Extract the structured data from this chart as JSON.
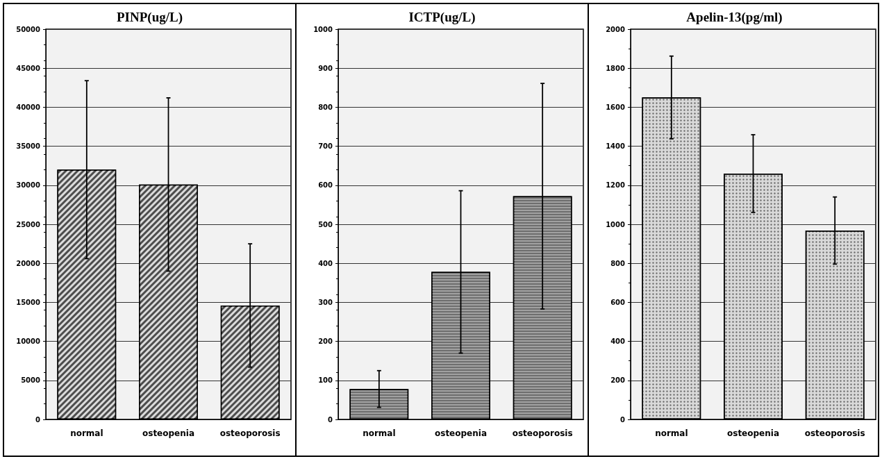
{
  "chart_data": [
    {
      "type": "bar",
      "title": "PINP(ug/L)",
      "categories": [
        "normal",
        "osteopenia",
        "osteoporosis"
      ],
      "values": [
        32000,
        30100,
        14600
      ],
      "errors": [
        11400,
        11100,
        7900
      ],
      "color": "#4d4d4d",
      "ylim": [
        0,
        50000
      ],
      "yticks": [
        0,
        5000,
        10000,
        15000,
        20000,
        25000,
        30000,
        35000,
        40000,
        45000,
        50000
      ],
      "grid": "y"
    },
    {
      "type": "bar",
      "title": "ICTP(ug/L)",
      "categories": [
        "normal",
        "osteopenia",
        "osteoporosis"
      ],
      "values": [
        78,
        378,
        572
      ],
      "errors": [
        47,
        208,
        289
      ],
      "color": "#6e6e6e",
      "ylim": [
        0,
        1000
      ],
      "yticks": [
        0,
        100,
        200,
        300,
        400,
        500,
        600,
        700,
        800,
        900,
        1000
      ],
      "grid": "y"
    },
    {
      "type": "bar",
      "title": "Apelin-13(pg/ml)",
      "categories": [
        "normal",
        "osteopenia",
        "osteoporosis"
      ],
      "values": [
        1650,
        1260,
        968
      ],
      "errors": [
        212,
        199,
        172
      ],
      "color": "#d9d9d9",
      "ylim": [
        0,
        2000
      ],
      "yticks": [
        0,
        200,
        400,
        600,
        800,
        1000,
        1200,
        1400,
        1600,
        1800,
        2000
      ],
      "grid": "y"
    }
  ]
}
